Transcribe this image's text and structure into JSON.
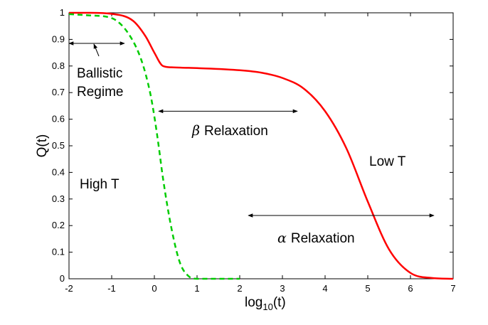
{
  "chart_data": {
    "type": "line",
    "title": "",
    "xlabel": {
      "base": "log",
      "sub": "10",
      "rest": "(t)"
    },
    "ylabel": "Q(t)",
    "xlim": [
      -2,
      7
    ],
    "ylim": [
      0,
      1
    ],
    "xticks": [
      "-2",
      "-1",
      "0",
      "1",
      "2",
      "3",
      "4",
      "5",
      "6",
      "7"
    ],
    "yticks": [
      "0",
      "0.1",
      "0.2",
      "0.3",
      "0.4",
      "0.5",
      "0.6",
      "0.7",
      "0.8",
      "0.9",
      "1"
    ],
    "grid": false,
    "series": [
      {
        "name": "Low T",
        "color": "#ff0000",
        "style": "solid",
        "x": [
          -2,
          -1.5,
          -1,
          -0.5,
          -0.2,
          0,
          0.2,
          0.4,
          0.8,
          1,
          2,
          2.5,
          3,
          3.5,
          4,
          4.5,
          5,
          5.5,
          6,
          6.5,
          7
        ],
        "y": [
          1.0,
          1.0,
          0.996,
          0.97,
          0.91,
          0.85,
          0.8,
          0.795,
          0.793,
          0.792,
          0.784,
          0.775,
          0.755,
          0.715,
          0.63,
          0.49,
          0.29,
          0.11,
          0.022,
          0.003,
          0.0
        ]
      },
      {
        "name": "High T",
        "color": "#00cc00",
        "style": "dashed",
        "x": [
          -2,
          -1.5,
          -1,
          -0.6,
          -0.3,
          -0.1,
          0,
          0.1,
          0.2,
          0.4,
          0.6,
          0.8,
          1,
          1.5,
          2
        ],
        "y": [
          0.995,
          0.99,
          0.98,
          0.92,
          0.82,
          0.7,
          0.61,
          0.5,
          0.38,
          0.19,
          0.06,
          0.01,
          0.0,
          0.0,
          0.0
        ]
      }
    ],
    "annotations": {
      "ballistic_line1": "Ballistic",
      "ballistic_line2": "Regime",
      "beta_symbol": "β",
      "beta_text": "Relaxation",
      "alpha_symbol": "α",
      "alpha_text": "Relaxation",
      "low_t": "Low T",
      "high_t": "High T"
    },
    "arrows": [
      {
        "name": "ballistic-arrow",
        "x1": -2,
        "x2": -0.7,
        "y": 0.885
      },
      {
        "name": "beta-arrow",
        "x1": 0.1,
        "x2": 3.35,
        "y": 0.63
      },
      {
        "name": "alpha-arrow",
        "x1": 2.2,
        "x2": 6.55,
        "y": 0.238
      }
    ]
  }
}
